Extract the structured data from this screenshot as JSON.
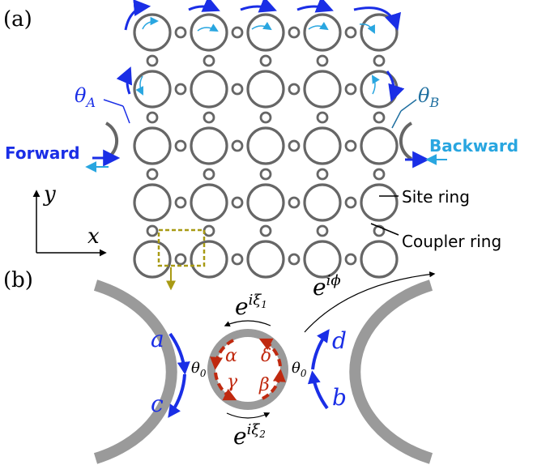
{
  "panel_a": {
    "label": "(a)",
    "grid": {
      "rows": 5,
      "cols": 5
    },
    "theta_A": {
      "base": "θ",
      "sub": "A"
    },
    "theta_B": {
      "base": "θ",
      "sub": "B"
    },
    "forward": "Forward",
    "backward": "Backward",
    "site_ring": "Site ring",
    "coupler_ring": "Coupler ring",
    "axis_y": "y",
    "axis_x": "x",
    "colors": {
      "ring": "#666666",
      "forward": "#1a2ee6",
      "backward": "#29a6e0",
      "box": "#a89a14"
    }
  },
  "panel_b": {
    "label": "(b)",
    "phase_top": {
      "base": "e",
      "sup": "iϕ"
    },
    "xi1": {
      "base": "e",
      "sup": "iξ",
      "sub": "1"
    },
    "xi2": {
      "base": "e",
      "sup": "iξ",
      "sub": "2"
    },
    "a": "a",
    "b": "b",
    "c": "c",
    "d": "d",
    "alpha": "α",
    "beta": "β",
    "gamma": "γ",
    "delta": "δ",
    "theta_left": {
      "base": "θ",
      "sub": "0"
    },
    "theta_right": {
      "base": "θ",
      "sub": "0"
    },
    "colors": {
      "guide": "#9a9a9a",
      "mode_blue": "#1a2ee6",
      "mode_red": "#c0290f"
    }
  }
}
